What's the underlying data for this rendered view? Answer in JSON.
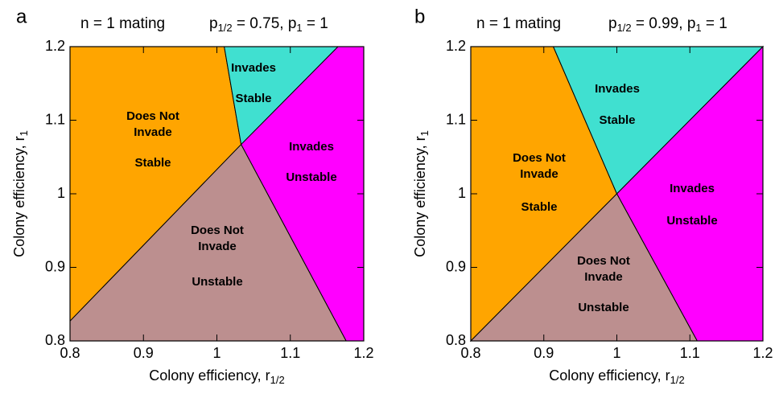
{
  "chart_data": [
    {
      "type": "region",
      "panel": "a",
      "title_parts": [
        {
          "text": "n = 1 mating"
        }
      ],
      "subtitle_parts": [
        {
          "text": "p"
        },
        {
          "sub": "1/2"
        },
        {
          "text": " = 0.75,  p"
        },
        {
          "sub": "1"
        },
        {
          "text": " = 1"
        }
      ],
      "x_label_parts": [
        {
          "text": "Colony efficiency, r"
        },
        {
          "sub": "1/2"
        }
      ],
      "y_label_parts": [
        {
          "text": "Colony efficiency, r"
        },
        {
          "sub": "1"
        }
      ],
      "xlim": [
        0.8,
        1.2
      ],
      "ylim": [
        0.8,
        1.2
      ],
      "xticks": [
        0.8,
        0.9,
        1,
        1.1,
        1.2
      ],
      "yticks": [
        0.8,
        0.9,
        1,
        1.1,
        1.2
      ],
      "regions": [
        {
          "label": [
            "Does Not",
            "Invade",
            "Stable"
          ],
          "color": "#ffa500",
          "x": [
            0.8,
            1.033,
            1.01,
            0.8
          ],
          "y": [
            0.827,
            1.067,
            1.2,
            1.2
          ]
        },
        {
          "label": [
            "Invades",
            "Stable"
          ],
          "color": "#40e0d0",
          "x": [
            1.01,
            1.033,
            1.165
          ],
          "y": [
            1.2,
            1.067,
            1.2
          ]
        },
        {
          "label": [
            "Invades",
            "Unstable"
          ],
          "color": "#ff00ff",
          "x": [
            1.165,
            1.033,
            1.176,
            1.2,
            1.2
          ],
          "y": [
            1.2,
            1.067,
            0.8,
            0.8,
            1.2
          ]
        },
        {
          "label": [
            "Does Not",
            "Invade",
            "Unstable"
          ],
          "color": "#bc8f8f",
          "x": [
            0.8,
            0.8,
            1.033,
            1.176
          ],
          "y": [
            0.8,
            0.827,
            1.067,
            0.8
          ]
        }
      ]
    },
    {
      "type": "region",
      "panel": "b",
      "title_parts": [
        {
          "text": "n = 1 mating"
        }
      ],
      "subtitle_parts": [
        {
          "text": "p"
        },
        {
          "sub": "1/2"
        },
        {
          "text": " = 0.99,  p"
        },
        {
          "sub": "1"
        },
        {
          "text": " = 1"
        }
      ],
      "x_label_parts": [
        {
          "text": "Colony efficiency, r"
        },
        {
          "sub": "1/2"
        }
      ],
      "y_label_parts": [
        {
          "text": "Colony efficiency, r"
        },
        {
          "sub": "1"
        }
      ],
      "xlim": [
        0.8,
        1.2
      ],
      "ylim": [
        0.8,
        1.2
      ],
      "xticks": [
        0.8,
        0.9,
        1,
        1.1,
        1.2
      ],
      "yticks": [
        0.8,
        0.9,
        1,
        1.1,
        1.2
      ],
      "regions": [
        {
          "label": [
            "Does Not",
            "Invade",
            "Stable"
          ],
          "color": "#ffa500",
          "x": [
            0.8,
            1,
            0.913,
            0.8
          ],
          "y": [
            0.8,
            1,
            1.2,
            1.2
          ]
        },
        {
          "label": [
            "Invades",
            "Stable"
          ],
          "color": "#40e0d0",
          "x": [
            0.913,
            1,
            1.2
          ],
          "y": [
            1.2,
            1,
            1.2
          ]
        },
        {
          "label": [
            "Invades",
            "Unstable"
          ],
          "color": "#ff00ff",
          "x": [
            1,
            1.2,
            1.2,
            1.11
          ],
          "y": [
            1,
            1.2,
            0.8,
            0.8
          ]
        },
        {
          "label": [
            "Does Not",
            "Invade",
            "Unstable"
          ],
          "color": "#bc8f8f",
          "x": [
            0.8,
            1,
            1.11
          ],
          "y": [
            0.8,
            1,
            0.8
          ]
        }
      ]
    }
  ]
}
